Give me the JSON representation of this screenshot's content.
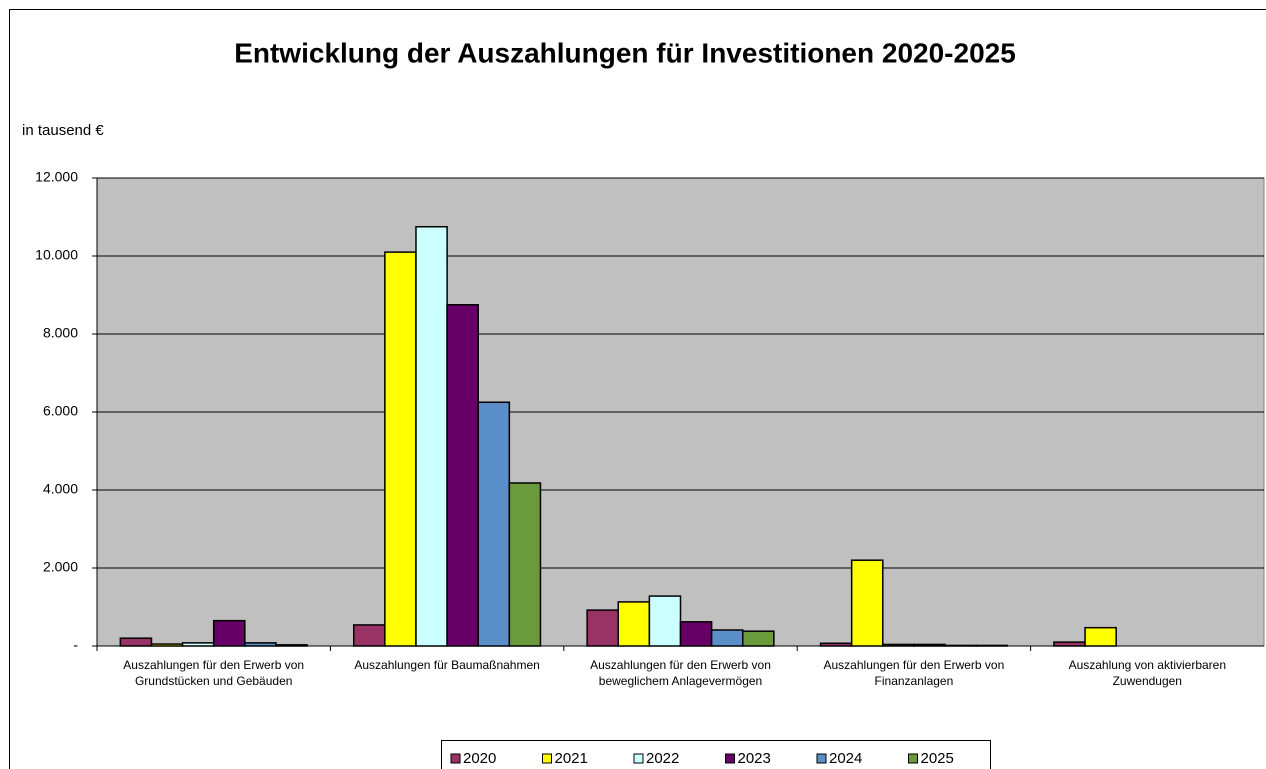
{
  "chart_data": {
    "type": "bar",
    "title": "Entwicklung der Auszahlungen für Investitionen 2020-2025",
    "y_label": "in tausend €",
    "categories": [
      [
        "Auszahlungen für den Erwerb von",
        "Grundstücken und Gebäuden"
      ],
      [
        "Auszahlungen für Baumaßnahmen"
      ],
      [
        "Auszahlungen für den Erwerb von",
        "beweglichem Anlagevermögen"
      ],
      [
        "Auszahlungen für den Erwerb von",
        "Finanzanlagen"
      ],
      [
        "Auszahlung von aktivierbaren",
        "Zuwendugen"
      ]
    ],
    "series": [
      {
        "name": "2020",
        "color": "#993366",
        "values": [
          200,
          540,
          920,
          70,
          100
        ]
      },
      {
        "name": "2021",
        "color": "#ffff00",
        "values": [
          50,
          10100,
          1130,
          2200,
          470
        ]
      },
      {
        "name": "2022",
        "color": "#ccffff",
        "values": [
          80,
          10750,
          1280,
          40,
          0
        ]
      },
      {
        "name": "2023",
        "color": "#660066",
        "values": [
          650,
          8750,
          620,
          40,
          0
        ]
      },
      {
        "name": "2024",
        "color": "#5b8fc9",
        "values": [
          80,
          6250,
          410,
          15,
          0
        ]
      },
      {
        "name": "2025",
        "color": "#6a9a3c",
        "values": [
          30,
          4180,
          380,
          15,
          0
        ]
      }
    ],
    "ylim": [
      0,
      12000
    ],
    "yticks": [
      {
        "value": 0,
        "label": "-"
      },
      {
        "value": 2000,
        "label": "2.000"
      },
      {
        "value": 4000,
        "label": "4.000"
      },
      {
        "value": 6000,
        "label": "6.000"
      },
      {
        "value": 8000,
        "label": "8.000"
      },
      {
        "value": 10000,
        "label": "10.000"
      },
      {
        "value": 12000,
        "label": "12.000"
      }
    ],
    "grid": true,
    "legend": "bottom"
  }
}
